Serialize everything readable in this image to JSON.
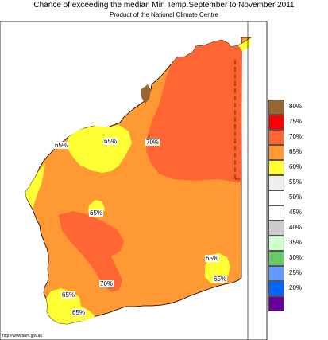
{
  "title": "Chance of exceeding the median Min Temp.September to November 2011",
  "subtitle": "Product of the National Climate Centre",
  "source": "http://www.bom.gov.au",
  "map_labels": [
    "65%",
    "65%",
    "70%",
    "65%",
    "70%",
    "65%",
    "65%",
    "65%",
    "65%"
  ],
  "legend": [
    {
      "label": "80%",
      "color": "#996633"
    },
    {
      "label": "75%",
      "color": "#ff0000"
    },
    {
      "label": "70%",
      "color": "#ff6633"
    },
    {
      "label": "65%",
      "color": "#ff9933"
    },
    {
      "label": "60%",
      "color": "#ffff33"
    },
    {
      "label": "55%",
      "color": "#eeeeee"
    },
    {
      "label": "50%",
      "color": "#ffffff"
    },
    {
      "label": "45%",
      "color": "#ffffff"
    },
    {
      "label": "40%",
      "color": "#cccccc"
    },
    {
      "label": "35%",
      "color": "#ccffcc"
    },
    {
      "label": "30%",
      "color": "#66cc66"
    },
    {
      "label": "25%",
      "color": "#6699ff"
    },
    {
      "label": "20%",
      "color": "#0066ff"
    },
    {
      "label": "",
      "color": "#660099"
    }
  ]
}
